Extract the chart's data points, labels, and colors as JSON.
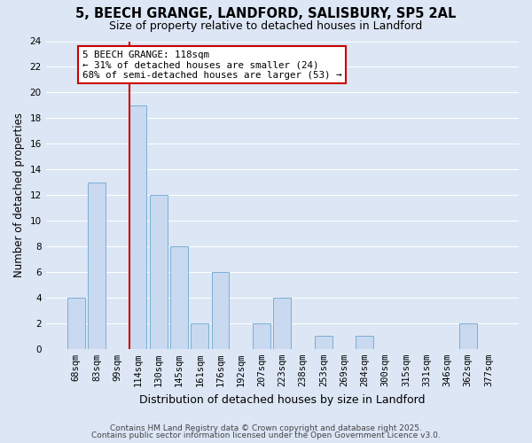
{
  "title": "5, BEECH GRANGE, LANDFORD, SALISBURY, SP5 2AL",
  "subtitle": "Size of property relative to detached houses in Landford",
  "xlabel": "Distribution of detached houses by size in Landford",
  "ylabel": "Number of detached properties",
  "bar_labels": [
    "68sqm",
    "83sqm",
    "99sqm",
    "114sqm",
    "130sqm",
    "145sqm",
    "161sqm",
    "176sqm",
    "192sqm",
    "207sqm",
    "223sqm",
    "238sqm",
    "253sqm",
    "269sqm",
    "284sqm",
    "300sqm",
    "315sqm",
    "331sqm",
    "346sqm",
    "362sqm",
    "377sqm"
  ],
  "bar_values": [
    4,
    13,
    0,
    19,
    12,
    8,
    2,
    6,
    0,
    2,
    4,
    0,
    1,
    0,
    1,
    0,
    0,
    0,
    0,
    2,
    0
  ],
  "bar_color": "#c9d9f0",
  "bar_edge_color": "#7bafd4",
  "vline_color": "#cc0000",
  "vline_x": 2.575,
  "ylim": [
    0,
    24
  ],
  "yticks": [
    0,
    2,
    4,
    6,
    8,
    10,
    12,
    14,
    16,
    18,
    20,
    22,
    24
  ],
  "annotation_title": "5 BEECH GRANGE: 118sqm",
  "annotation_line1": "← 31% of detached houses are smaller (24)",
  "annotation_line2": "68% of semi-detached houses are larger (53) →",
  "annotation_box_facecolor": "#ffffff",
  "annotation_box_edgecolor": "#cc0000",
  "footer1": "Contains HM Land Registry data © Crown copyright and database right 2025.",
  "footer2": "Contains public sector information licensed under the Open Government Licence v3.0.",
  "background_color": "#dce6f5",
  "plot_bg_color": "#dce6f5",
  "grid_color": "#ffffff",
  "title_fontsize": 10.5,
  "subtitle_fontsize": 9,
  "ylabel_fontsize": 8.5,
  "xlabel_fontsize": 9,
  "tick_fontsize": 7.5,
  "footer_fontsize": 6.5
}
